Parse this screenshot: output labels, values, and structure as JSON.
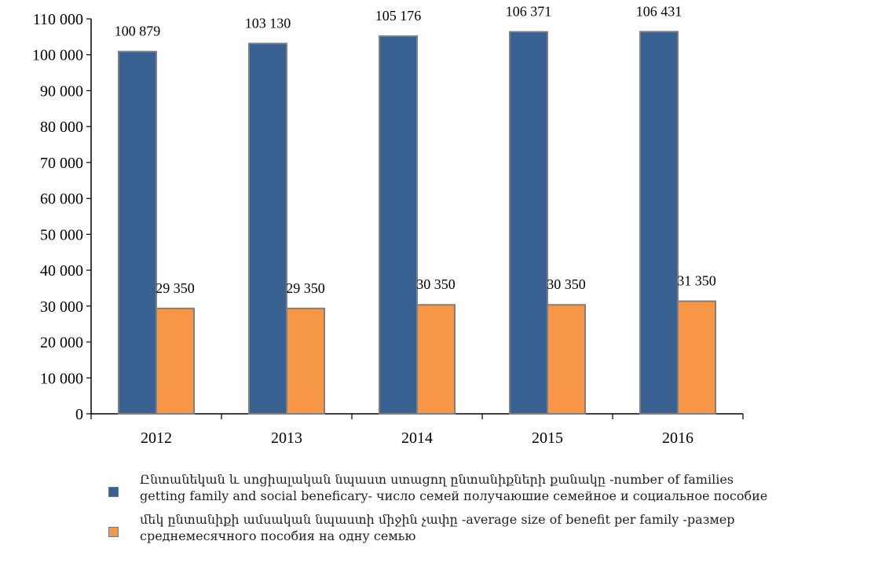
{
  "chart_data": {
    "type": "bar",
    "categories": [
      "2012",
      "2013",
      "2014",
      "2015",
      "2016"
    ],
    "series": [
      {
        "name_lines": [
          "Ընտանեկան և սոցիալական նպաստ ստացող ընտանիքների քանակը -number of families",
          "getting  family  and social beneficary- число семей получаюшие семейное и социальное пособие"
        ],
        "values": [
          100879,
          103130,
          105176,
          106371,
          106431
        ],
        "labels": [
          "100 879",
          "103 130",
          "105 176",
          "106 371",
          "106 431"
        ],
        "color": "#386090"
      },
      {
        "name_lines": [
          "մեկ ընտանիքի ամսական նպաստի միջին չափը -average size of  benefit per family -размер",
          "среднемесячного пособия на одну семью"
        ],
        "values": [
          29350,
          29350,
          30350,
          30350,
          31350
        ],
        "labels": [
          "29 350",
          "29 350",
          "30 350",
          "30 350",
          "31 350"
        ],
        "color": "#f79646"
      }
    ],
    "y_ticks": [
      {
        "value": 0,
        "label": "0"
      },
      {
        "value": 10000,
        "label": "10 000"
      },
      {
        "value": 20000,
        "label": "20 000"
      },
      {
        "value": 30000,
        "label": "30 000"
      },
      {
        "value": 40000,
        "label": "40 000"
      },
      {
        "value": 50000,
        "label": "50 000"
      },
      {
        "value": 60000,
        "label": "60 000"
      },
      {
        "value": 70000,
        "label": "70 000"
      },
      {
        "value": 80000,
        "label": "80 000"
      },
      {
        "value": 90000,
        "label": "90 000"
      },
      {
        "value": 100000,
        "label": "100 000"
      },
      {
        "value": 110000,
        "label": "110 000"
      }
    ],
    "ylim": [
      0,
      110000
    ],
    "grid": false,
    "legend_position": "bottom"
  }
}
